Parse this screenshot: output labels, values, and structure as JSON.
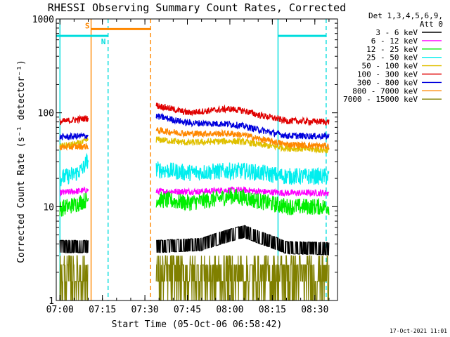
{
  "chart_data": {
    "type": "line",
    "title": "RHESSI Observing Summary Count Rates, Corrected",
    "xlabel": "Start Time (05-Oct-06 06:58:42)",
    "ylabel": "Corrected Count Rate (s⁻¹ detector⁻¹)",
    "yscale": "log",
    "xlim": [
      "06:58:42",
      "08:38:00"
    ],
    "ylim": [
      1,
      1000
    ],
    "x_ticks": [
      "07:00",
      "07:15",
      "07:30",
      "07:45",
      "08:00",
      "08:15",
      "08:30"
    ],
    "y_ticks": [
      "1",
      "10",
      "100",
      "1000"
    ],
    "legend": {
      "position": "right",
      "header": "Det 1,3,4,5,6,9,",
      "subheader": "Att 0"
    },
    "series": [
      {
        "name": "3 - 6 keV",
        "color": "#000000",
        "segments": [
          {
            "x": [
              "07:00",
              "07:10"
            ],
            "values": [
              3.8,
              3.8
            ]
          },
          {
            "x": [
              "07:34",
              "07:50",
              "08:00",
              "08:05",
              "08:10",
              "08:20",
              "08:35"
            ],
            "values": [
              3.8,
              4.0,
              5.0,
              5.5,
              4.8,
              3.7,
              3.6
            ]
          }
        ]
      },
      {
        "name": "6 - 12 keV",
        "color": "#ff00ff",
        "segments": [
          {
            "x": [
              "07:00",
              "07:10"
            ],
            "values": [
              14,
              15
            ]
          },
          {
            "x": [
              "07:34",
              "07:50",
              "08:00",
              "08:05",
              "08:10",
              "08:20",
              "08:35"
            ],
            "values": [
              14.5,
              14.5,
              15,
              15,
              14.5,
              14,
              14
            ]
          }
        ]
      },
      {
        "name": "12 - 25 keV",
        "color": "#00ee00",
        "segments": [
          {
            "x": [
              "07:00",
              "07:05",
              "07:10"
            ],
            "values": [
              9.5,
              10.5,
              12
            ]
          },
          {
            "x": [
              "07:34",
              "07:45",
              "07:55",
              "08:00",
              "08:05",
              "08:10",
              "08:20",
              "08:35"
            ],
            "values": [
              12,
              11,
              12,
              13,
              12.5,
              11.5,
              10,
              10
            ]
          }
        ]
      },
      {
        "name": "25 - 50 keV",
        "color": "#00eeee",
        "segments": [
          {
            "x": [
              "07:00",
              "07:05",
              "07:08",
              "07:10"
            ],
            "values": [
              20,
              22,
              25,
              32
            ]
          },
          {
            "x": [
              "07:34",
              "07:45",
              "08:00",
              "08:05",
              "08:10",
              "08:20",
              "08:35"
            ],
            "values": [
              25,
              23,
              24,
              24,
              23,
              21,
              21
            ]
          }
        ]
      },
      {
        "name": "50 - 100 keV",
        "color": "#e0c000",
        "segments": [
          {
            "x": [
              "07:00",
              "07:05",
              "07:08",
              "07:10"
            ],
            "values": [
              44,
              46,
              48,
              52
            ]
          },
          {
            "x": [
              "07:34",
              "07:45",
              "08:00",
              "08:05",
              "08:10",
              "08:20",
              "08:35"
            ],
            "values": [
              52,
              48,
              50,
              49,
              46,
              42,
              40
            ]
          }
        ]
      },
      {
        "name": "100 - 300 keV",
        "color": "#e00000",
        "segments": [
          {
            "x": [
              "07:00",
              "07:10"
            ],
            "values": [
              80,
              88
            ]
          },
          {
            "x": [
              "07:34",
              "07:45",
              "07:55",
              "08:00",
              "08:05",
              "08:10",
              "08:20",
              "08:35"
            ],
            "values": [
              120,
              100,
              107,
              110,
              105,
              95,
              82,
              80
            ]
          }
        ]
      },
      {
        "name": "300 - 800 keV",
        "color": "#0000dd",
        "segments": [
          {
            "x": [
              "07:00",
              "07:10"
            ],
            "values": [
              55,
              57
            ]
          },
          {
            "x": [
              "07:34",
              "07:45",
              "08:00",
              "08:05",
              "08:10",
              "08:20",
              "08:35"
            ],
            "values": [
              92,
              78,
              76,
              72,
              66,
              57,
              56
            ]
          }
        ]
      },
      {
        "name": "800 - 7000 keV",
        "color": "#ff8800",
        "segments": [
          {
            "x": [
              "07:00",
              "07:10"
            ],
            "values": [
              43,
              44
            ]
          },
          {
            "x": [
              "07:34",
              "07:45",
              "08:00",
              "08:05",
              "08:10",
              "08:20",
              "08:35"
            ],
            "values": [
              65,
              60,
              60,
              58,
              53,
              46,
              44
            ]
          }
        ]
      },
      {
        "name": "7000 - 15000 keV",
        "color": "#808000",
        "segments": [
          {
            "x": [
              "07:00",
              "07:10"
            ],
            "values": [
              2.4,
              2.4
            ]
          },
          {
            "x": [
              "07:34",
              "07:50",
              "08:00",
              "08:05",
              "08:10",
              "08:20",
              "08:35"
            ],
            "values": [
              2.4,
              2.4,
              2.6,
              2.8,
              2.5,
              2.3,
              2.3
            ]
          }
        ]
      }
    ],
    "annotations": {
      "flags": [
        {
          "label": "S",
          "color": "#ff8800",
          "x_start": "07:11",
          "x_end": "07:32",
          "y": 780
        },
        {
          "label": "N",
          "color": "#00dddd",
          "x_start": "06:58:42",
          "x_end": "07:17",
          "y": 660
        },
        {
          "label": "",
          "color": "#00dddd",
          "x_start": "08:17",
          "x_end": "08:34",
          "y": 660
        }
      ],
      "vertical_lines": [
        {
          "x": "07:11",
          "color": "#ff8800",
          "style": "solid"
        },
        {
          "x": "07:32",
          "color": "#ff8800",
          "style": "dashed"
        },
        {
          "x": "07:00",
          "color": "#00dddd",
          "style": "solid"
        },
        {
          "x": "07:17",
          "color": "#00dddd",
          "style": "dashed"
        },
        {
          "x": "08:17",
          "color": "#00dddd",
          "style": "solid"
        },
        {
          "x": "08:34",
          "color": "#00dddd",
          "style": "dashed"
        }
      ]
    },
    "footer_stamp": "17-Oct-2021 11:01"
  }
}
